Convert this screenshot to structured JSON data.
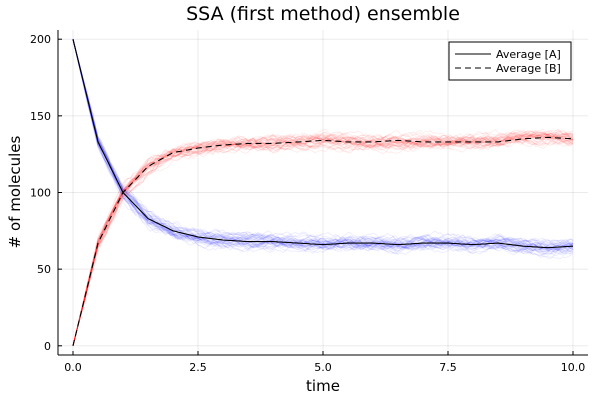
{
  "chart_data": {
    "type": "line",
    "title": "SSA (first method) ensemble",
    "xlabel": "time",
    "ylabel": "# of molecules",
    "xlim": [
      -0.3,
      10.3
    ],
    "ylim": [
      -6,
      206
    ],
    "xticks": [
      0,
      2.5,
      5,
      7.5,
      10
    ],
    "xtick_labels": [
      "0.0",
      "2.5",
      "5.0",
      "7.5",
      "10.0"
    ],
    "yticks": [
      0,
      50,
      100,
      150,
      200
    ],
    "ytick_labels": [
      "0",
      "50",
      "100",
      "150",
      "200"
    ],
    "grid": true,
    "legend_position": "top-right",
    "x": [
      0,
      0.5,
      1,
      1.5,
      2,
      2.5,
      3,
      3.5,
      4,
      4.5,
      5,
      5.5,
      6,
      6.5,
      7,
      7.5,
      8,
      8.5,
      9,
      9.5,
      10
    ],
    "series": [
      {
        "name": "Average [A]",
        "style": "solid",
        "color": "#000000",
        "values": [
          200,
          133,
          100,
          83,
          75,
          71,
          69,
          68,
          68,
          67,
          66,
          67,
          67,
          66,
          67,
          67,
          66,
          67,
          65,
          64,
          65
        ]
      },
      {
        "name": "Average [B]",
        "style": "dashed",
        "color": "#000000",
        "values": [
          0,
          67,
          100,
          117,
          126,
          129,
          131,
          132,
          132,
          133,
          134,
          133,
          133,
          134,
          133,
          133,
          133,
          133,
          135,
          136,
          135
        ]
      }
    ],
    "ensemble_colors": {
      "A": "#0000ff",
      "B": "#ff0000"
    }
  }
}
